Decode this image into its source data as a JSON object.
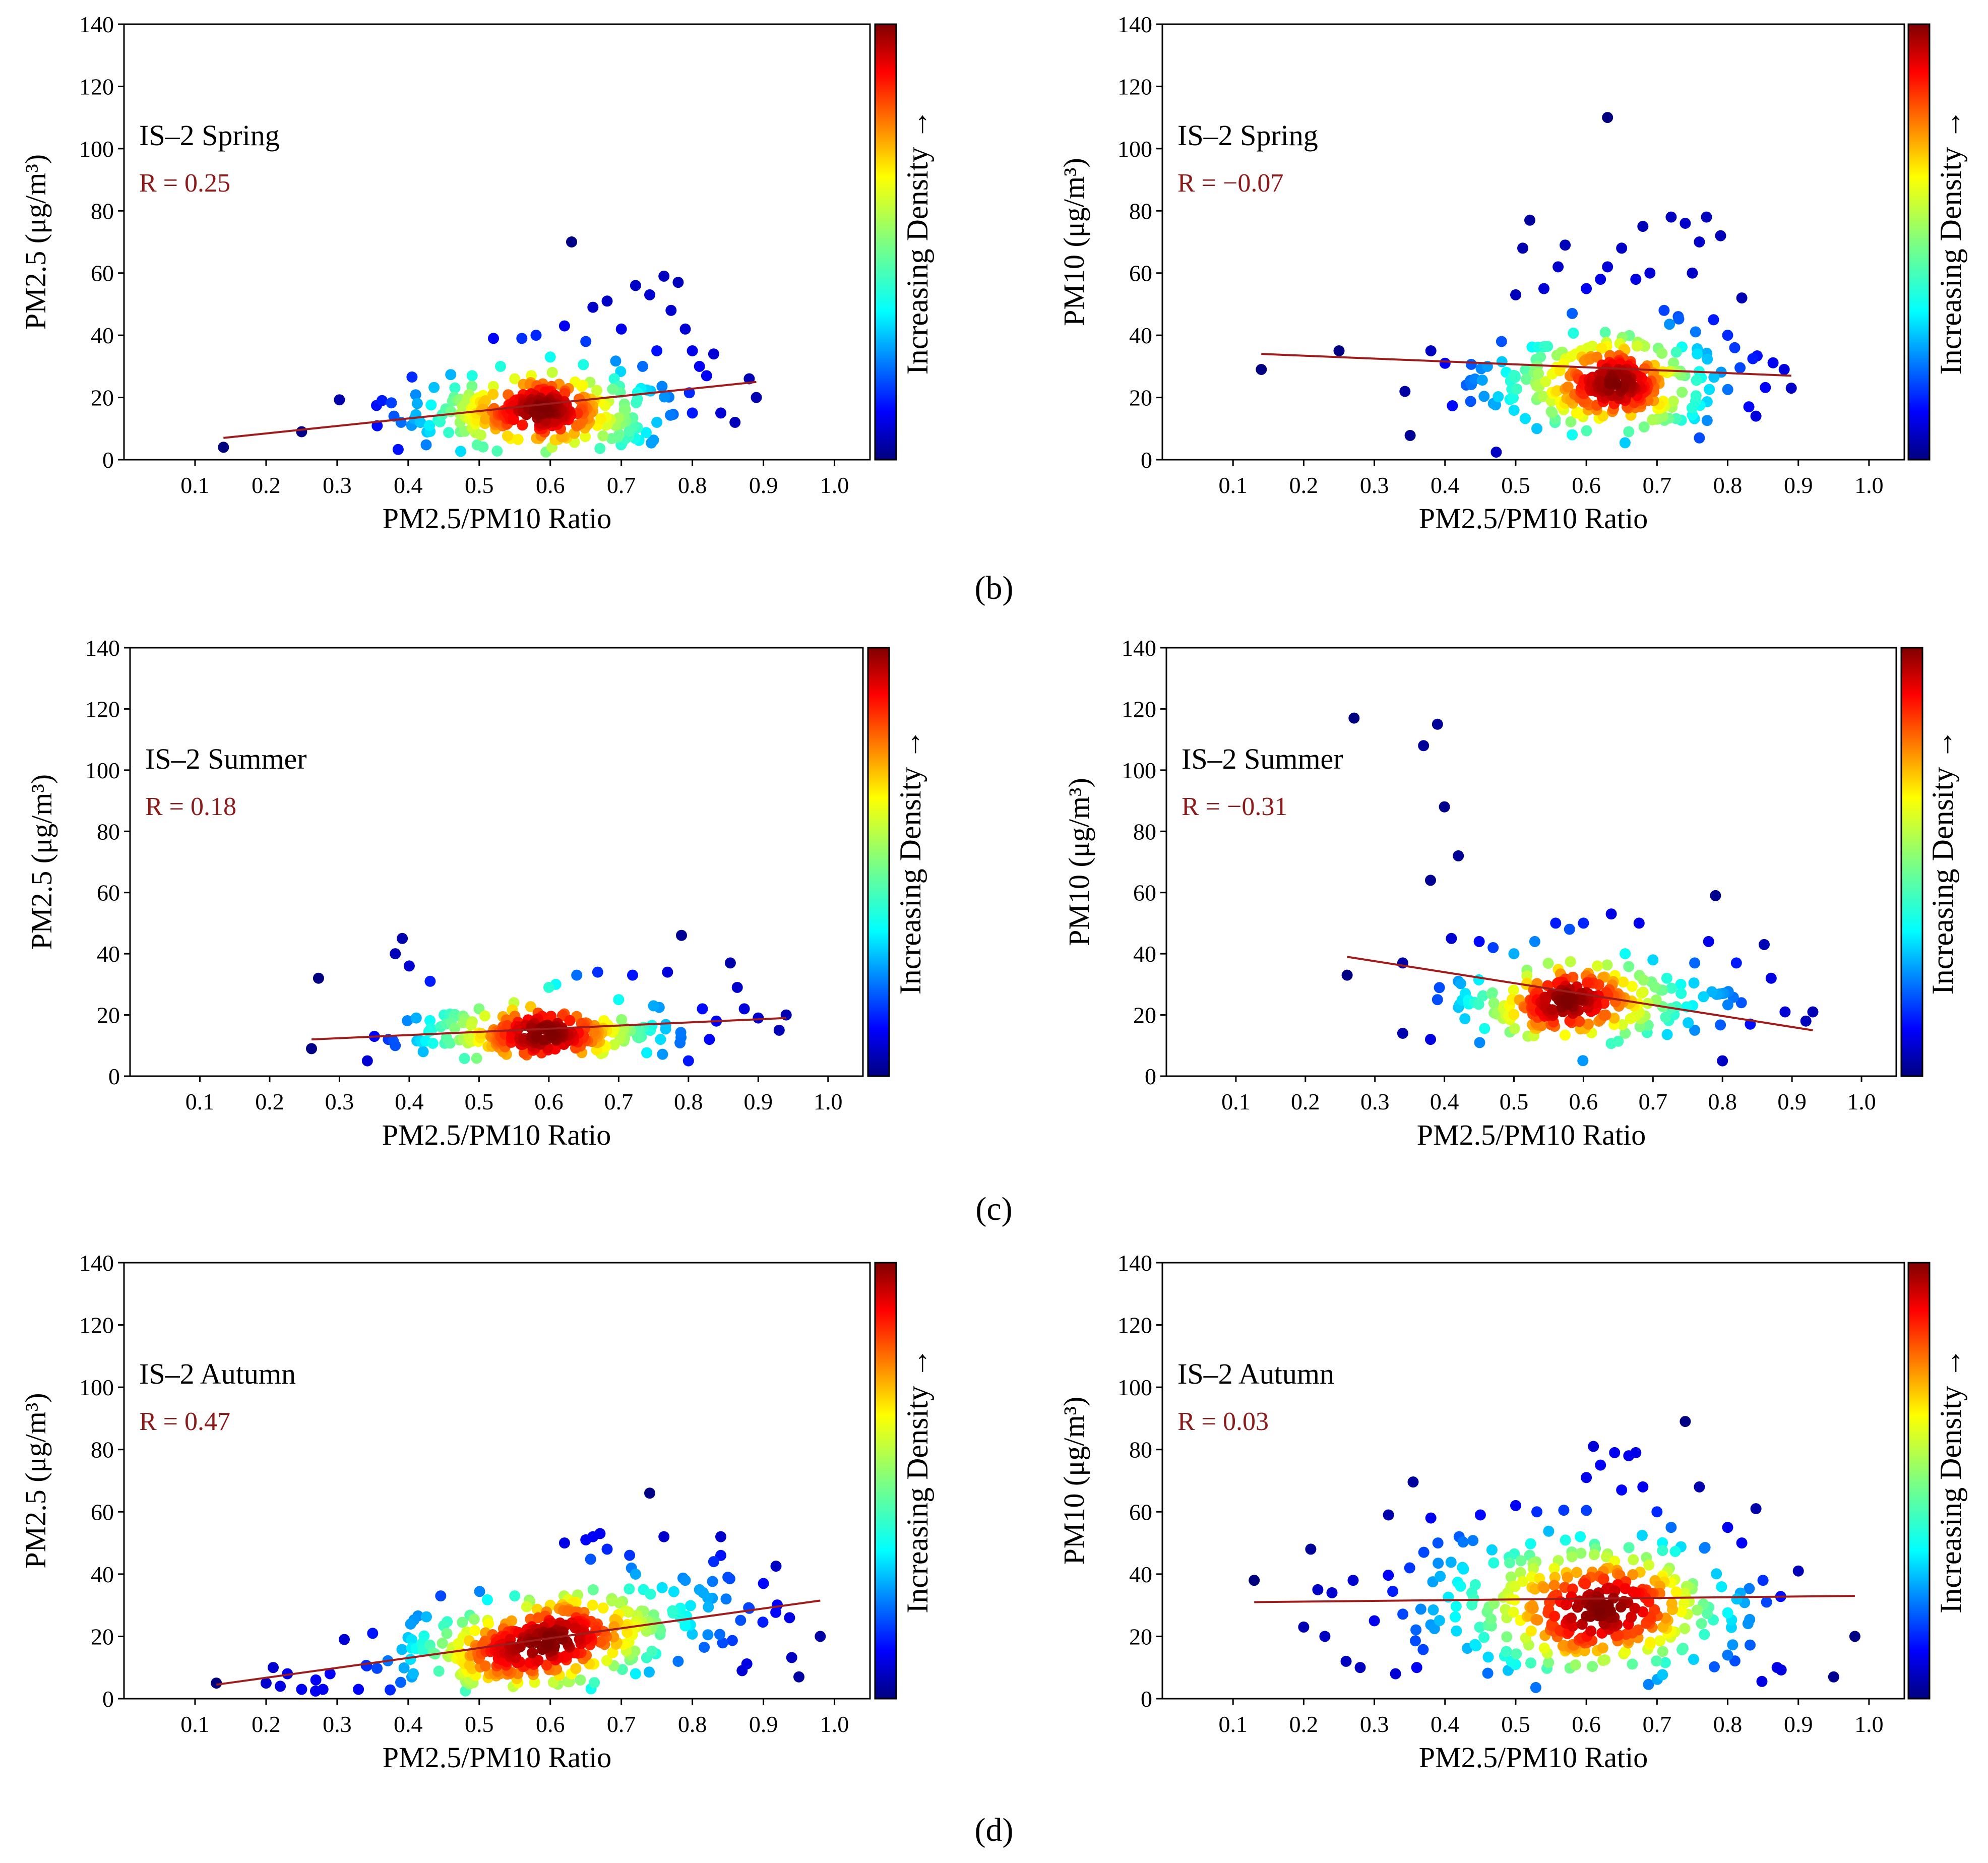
{
  "colors": {
    "regression_line": "#a01c1c",
    "r_text": "#8b1a1a",
    "axis": "#000000",
    "colormap": [
      "#00007f",
      "#0000ff",
      "#007fff",
      "#00ffff",
      "#7fff7f",
      "#ffff00",
      "#ff7f00",
      "#ff0000",
      "#7f0000"
    ]
  },
  "panel_letters": [
    "(b)",
    "(c)",
    "(d)"
  ],
  "chart_data": [
    {
      "id": "b-left",
      "type": "scatter",
      "title": "IS–2 Spring",
      "r_text": "R = 0.25",
      "xlabel": "PM2.5/PM10 Ratio",
      "ylabel": "PM2.5 (μg/m³)",
      "colorbar_label": "Increasing Density →",
      "xlim": [
        0,
        1.05
      ],
      "ylim": [
        0,
        140
      ],
      "xticks": [
        "0.1",
        "0.2",
        "0.3",
        "0.4",
        "0.5",
        "0.6",
        "0.7",
        "0.8",
        "0.9",
        "1.0"
      ],
      "yticks": [
        "0",
        "20",
        "40",
        "60",
        "80",
        "100",
        "120",
        "140"
      ],
      "fit": {
        "x": [
          0.14,
          0.89
        ],
        "y": [
          7,
          25
        ]
      },
      "outliers": [
        [
          0.14,
          4
        ],
        [
          0.25,
          9
        ],
        [
          0.38,
          14
        ],
        [
          0.39,
          12
        ],
        [
          0.43,
          11
        ],
        [
          0.47,
          19
        ],
        [
          0.49,
          27
        ],
        [
          0.52,
          39
        ],
        [
          0.53,
          30
        ],
        [
          0.56,
          39
        ],
        [
          0.58,
          40
        ],
        [
          0.62,
          43
        ],
        [
          0.63,
          70
        ],
        [
          0.65,
          38
        ],
        [
          0.66,
          49
        ],
        [
          0.68,
          51
        ],
        [
          0.7,
          42
        ],
        [
          0.72,
          56
        ],
        [
          0.74,
          53
        ],
        [
          0.75,
          35
        ],
        [
          0.76,
          59
        ],
        [
          0.77,
          48
        ],
        [
          0.78,
          57
        ],
        [
          0.79,
          42
        ],
        [
          0.8,
          35
        ],
        [
          0.81,
          30
        ],
        [
          0.82,
          27
        ],
        [
          0.83,
          34
        ],
        [
          0.84,
          15
        ],
        [
          0.86,
          12
        ],
        [
          0.88,
          26
        ],
        [
          0.89,
          20
        ],
        [
          0.6,
          33
        ],
        [
          0.73,
          30
        ],
        [
          0.69,
          26
        ],
        [
          0.55,
          26
        ],
        [
          0.8,
          15
        ],
        [
          0.75,
          12
        ]
      ],
      "cluster": {
        "cx": 0.59,
        "cy": 15,
        "sx": 0.085,
        "sy": 5.5,
        "n": 300,
        "core": [
          0.555,
          14
        ]
      }
    },
    {
      "id": "b-right",
      "type": "scatter",
      "title": "IS–2 Spring",
      "r_text": "R = −0.07",
      "xlabel": "PM2.5/PM10 Ratio",
      "ylabel": "PM10 (μg/m³)",
      "colorbar_label": "Increasing Density →",
      "xlim": [
        0,
        1.05
      ],
      "ylim": [
        0,
        140
      ],
      "xticks": [
        "0.1",
        "0.2",
        "0.3",
        "0.4",
        "0.5",
        "0.6",
        "0.7",
        "0.8",
        "0.9",
        "1.0"
      ],
      "yticks": [
        "0",
        "20",
        "40",
        "60",
        "80",
        "100",
        "120",
        "140"
      ],
      "fit": {
        "x": [
          0.14,
          0.89
        ],
        "y": [
          34,
          27
        ]
      },
      "outliers": [
        [
          0.14,
          29
        ],
        [
          0.25,
          35
        ],
        [
          0.38,
          35
        ],
        [
          0.4,
          31
        ],
        [
          0.43,
          24
        ],
        [
          0.46,
          30
        ],
        [
          0.48,
          38
        ],
        [
          0.5,
          53
        ],
        [
          0.51,
          68
        ],
        [
          0.52,
          77
        ],
        [
          0.54,
          55
        ],
        [
          0.56,
          62
        ],
        [
          0.57,
          69
        ],
        [
          0.58,
          47
        ],
        [
          0.6,
          55
        ],
        [
          0.62,
          58
        ],
        [
          0.63,
          62
        ],
        [
          0.63,
          110
        ],
        [
          0.65,
          68
        ],
        [
          0.67,
          58
        ],
        [
          0.68,
          75
        ],
        [
          0.69,
          60
        ],
        [
          0.71,
          48
        ],
        [
          0.72,
          78
        ],
        [
          0.73,
          46
        ],
        [
          0.74,
          76
        ],
        [
          0.75,
          60
        ],
        [
          0.76,
          70
        ],
        [
          0.77,
          78
        ],
        [
          0.78,
          45
        ],
        [
          0.79,
          72
        ],
        [
          0.8,
          40
        ],
        [
          0.81,
          36
        ],
        [
          0.82,
          52
        ],
        [
          0.83,
          17
        ],
        [
          0.84,
          14
        ],
        [
          0.88,
          29
        ],
        [
          0.89,
          23
        ],
        [
          0.53,
          10
        ],
        [
          0.58,
          8
        ],
        [
          0.66,
          9
        ],
        [
          0.7,
          13
        ],
        [
          0.76,
          7
        ]
      ],
      "cluster": {
        "cx": 0.625,
        "cy": 25,
        "sx": 0.085,
        "sy": 7.5,
        "n": 300,
        "core": [
          0.57,
          26
        ]
      }
    },
    {
      "id": "c-left",
      "type": "scatter",
      "title": "IS–2 Summer",
      "r_text": "R = 0.18",
      "xlabel": "PM2.5/PM10 Ratio",
      "ylabel": "PM2.5 (μg/m³)",
      "colorbar_label": "Increasing Density →",
      "xlim": [
        0,
        1.05
      ],
      "ylim": [
        0,
        140
      ],
      "xticks": [
        "0.1",
        "0.2",
        "0.3",
        "0.4",
        "0.5",
        "0.6",
        "0.7",
        "0.8",
        "0.9",
        "1.0"
      ],
      "yticks": [
        "0",
        "20",
        "40",
        "60",
        "80",
        "100",
        "120",
        "140"
      ],
      "fit": {
        "x": [
          0.26,
          0.94
        ],
        "y": [
          12,
          19
        ]
      },
      "outliers": [
        [
          0.26,
          9
        ],
        [
          0.27,
          32
        ],
        [
          0.34,
          5
        ],
        [
          0.35,
          13
        ],
        [
          0.38,
          40
        ],
        [
          0.39,
          45
        ],
        [
          0.4,
          36
        ],
        [
          0.41,
          19
        ],
        [
          0.43,
          31
        ],
        [
          0.38,
          10
        ],
        [
          0.37,
          12
        ],
        [
          0.42,
          8
        ],
        [
          0.45,
          20
        ],
        [
          0.5,
          22
        ],
        [
          0.55,
          24
        ],
        [
          0.6,
          29
        ],
        [
          0.61,
          30
        ],
        [
          0.64,
          33
        ],
        [
          0.67,
          34
        ],
        [
          0.7,
          25
        ],
        [
          0.72,
          33
        ],
        [
          0.75,
          23
        ],
        [
          0.77,
          34
        ],
        [
          0.79,
          46
        ],
        [
          0.8,
          5
        ],
        [
          0.82,
          22
        ],
        [
          0.84,
          18
        ],
        [
          0.86,
          37
        ],
        [
          0.87,
          29
        ],
        [
          0.88,
          22
        ],
        [
          0.9,
          19
        ],
        [
          0.93,
          15
        ],
        [
          0.94,
          20
        ],
        [
          0.83,
          12
        ],
        [
          0.76,
          12
        ],
        [
          0.68,
          10
        ]
      ],
      "cluster": {
        "cx": 0.59,
        "cy": 13.5,
        "sx": 0.09,
        "sy": 3.5,
        "n": 230,
        "core": [
          0.555,
          13
        ]
      }
    },
    {
      "id": "c-right",
      "type": "scatter",
      "title": "IS–2 Summer",
      "r_text": "R = −0.31",
      "xlabel": "PM2.5/PM10 Ratio",
      "ylabel": "PM10 (μg/m³)",
      "colorbar_label": "Increasing Density →",
      "xlim": [
        0,
        1.05
      ],
      "ylim": [
        0,
        140
      ],
      "xticks": [
        "0.1",
        "0.2",
        "0.3",
        "0.4",
        "0.5",
        "0.6",
        "0.7",
        "0.8",
        "0.9",
        "1.0"
      ],
      "yticks": [
        "0",
        "20",
        "40",
        "60",
        "80",
        "100",
        "120",
        "140"
      ],
      "fit": {
        "x": [
          0.26,
          0.93
        ],
        "y": [
          39,
          15
        ]
      },
      "outliers": [
        [
          0.26,
          33
        ],
        [
          0.27,
          117
        ],
        [
          0.34,
          37
        ],
        [
          0.37,
          108
        ],
        [
          0.38,
          64
        ],
        [
          0.39,
          115
        ],
        [
          0.4,
          88
        ],
        [
          0.42,
          72
        ],
        [
          0.34,
          14
        ],
        [
          0.38,
          12
        ],
        [
          0.39,
          25
        ],
        [
          0.41,
          45
        ],
        [
          0.42,
          31
        ],
        [
          0.43,
          27
        ],
        [
          0.45,
          44
        ],
        [
          0.47,
          42
        ],
        [
          0.5,
          40
        ],
        [
          0.53,
          44
        ],
        [
          0.56,
          50
        ],
        [
          0.58,
          48
        ],
        [
          0.6,
          50
        ],
        [
          0.62,
          36
        ],
        [
          0.64,
          53
        ],
        [
          0.66,
          40
        ],
        [
          0.68,
          50
        ],
        [
          0.7,
          38
        ],
        [
          0.72,
          32
        ],
        [
          0.74,
          30
        ],
        [
          0.76,
          37
        ],
        [
          0.78,
          44
        ],
        [
          0.79,
          59
        ],
        [
          0.8,
          27
        ],
        [
          0.82,
          37
        ],
        [
          0.84,
          17
        ],
        [
          0.86,
          43
        ],
        [
          0.87,
          32
        ],
        [
          0.89,
          21
        ],
        [
          0.92,
          18
        ],
        [
          0.93,
          21
        ],
        [
          0.8,
          5
        ],
        [
          0.76,
          15
        ],
        [
          0.66,
          14
        ]
      ],
      "cluster": {
        "cx": 0.59,
        "cy": 23.5,
        "sx": 0.085,
        "sy": 5.5,
        "n": 230,
        "core": [
          0.555,
          24
        ]
      }
    },
    {
      "id": "d-left",
      "type": "scatter",
      "title": "IS–2 Autumn",
      "r_text": "R = 0.47",
      "xlabel": "PM2.5/PM10 Ratio",
      "ylabel": "PM2.5 (μg/m³)",
      "colorbar_label": "Increasing Density →",
      "xlim": [
        0,
        1.05
      ],
      "ylim": [
        0,
        140
      ],
      "xticks": [
        "0.1",
        "0.2",
        "0.3",
        "0.4",
        "0.5",
        "0.6",
        "0.7",
        "0.8",
        "0.9",
        "1.0"
      ],
      "yticks": [
        "0",
        "20",
        "40",
        "60",
        "80",
        "100",
        "120",
        "140"
      ],
      "fit": {
        "x": [
          0.13,
          0.98
        ],
        "y": [
          4.5,
          31.5
        ]
      },
      "outliers": [
        [
          0.13,
          5
        ],
        [
          0.2,
          5
        ],
        [
          0.21,
          10
        ],
        [
          0.22,
          4
        ],
        [
          0.23,
          8
        ],
        [
          0.25,
          3
        ],
        [
          0.27,
          6
        ],
        [
          0.28,
          3
        ],
        [
          0.29,
          8
        ],
        [
          0.31,
          19
        ],
        [
          0.33,
          3
        ],
        [
          0.35,
          21
        ],
        [
          0.62,
          50
        ],
        [
          0.65,
          51
        ],
        [
          0.66,
          52
        ],
        [
          0.67,
          53
        ],
        [
          0.68,
          48
        ],
        [
          0.72,
          40
        ],
        [
          0.74,
          66
        ],
        [
          0.76,
          52
        ],
        [
          0.79,
          38
        ],
        [
          0.81,
          35
        ],
        [
          0.83,
          44
        ],
        [
          0.84,
          52
        ],
        [
          0.84,
          46
        ],
        [
          0.85,
          39
        ],
        [
          0.87,
          9
        ],
        [
          0.88,
          29
        ],
        [
          0.9,
          37
        ],
        [
          0.95,
          7
        ],
        [
          0.98,
          20
        ],
        [
          0.78,
          12
        ],
        [
          0.72,
          8
        ],
        [
          0.6,
          30
        ],
        [
          0.55,
          33
        ]
      ],
      "cluster": {
        "cx": 0.6,
        "cy": 19,
        "sx": 0.115,
        "sy": 7.5,
        "n": 380,
        "core": [
          0.545,
          13
        ],
        "slope": 30
      }
    },
    {
      "id": "d-right",
      "type": "scatter",
      "title": "IS–2 Autumn",
      "r_text": "R = 0.03",
      "xlabel": "PM2.5/PM10 Ratio",
      "ylabel": "PM10 (μg/m³)",
      "colorbar_label": "Increasing Density →",
      "xlim": [
        0,
        1.05
      ],
      "ylim": [
        0,
        140
      ],
      "xticks": [
        "0.1",
        "0.2",
        "0.3",
        "0.4",
        "0.5",
        "0.6",
        "0.7",
        "0.8",
        "0.9",
        "1.0"
      ],
      "yticks": [
        "0",
        "20",
        "40",
        "60",
        "80",
        "100",
        "120",
        "140"
      ],
      "fit": {
        "x": [
          0.13,
          0.98
        ],
        "y": [
          31,
          33
        ]
      },
      "outliers": [
        [
          0.13,
          38
        ],
        [
          0.2,
          23
        ],
        [
          0.21,
          48
        ],
        [
          0.22,
          35
        ],
        [
          0.23,
          20
        ],
        [
          0.24,
          34
        ],
        [
          0.26,
          12
        ],
        [
          0.27,
          38
        ],
        [
          0.28,
          10
        ],
        [
          0.3,
          25
        ],
        [
          0.32,
          59
        ],
        [
          0.33,
          8
        ],
        [
          0.35,
          42
        ],
        [
          0.37,
          47
        ],
        [
          0.38,
          58
        ],
        [
          0.39,
          50
        ],
        [
          0.42,
          52
        ],
        [
          0.45,
          59
        ],
        [
          0.5,
          62
        ],
        [
          0.53,
          60
        ],
        [
          0.6,
          71
        ],
        [
          0.61,
          81
        ],
        [
          0.62,
          75
        ],
        [
          0.64,
          79
        ],
        [
          0.65,
          67
        ],
        [
          0.66,
          78
        ],
        [
          0.67,
          79
        ],
        [
          0.68,
          68
        ],
        [
          0.7,
          60
        ],
        [
          0.72,
          55
        ],
        [
          0.74,
          89
        ],
        [
          0.76,
          68
        ],
        [
          0.8,
          55
        ],
        [
          0.82,
          50
        ],
        [
          0.84,
          61
        ],
        [
          0.85,
          38
        ],
        [
          0.87,
          10
        ],
        [
          0.9,
          41
        ],
        [
          0.95,
          7
        ],
        [
          0.98,
          20
        ],
        [
          0.8,
          14
        ],
        [
          0.36,
          10
        ]
      ],
      "cluster": {
        "cx": 0.6,
        "cy": 30,
        "sx": 0.11,
        "sy": 11,
        "n": 360,
        "cores": [
          [
            0.54,
            21
          ],
          [
            0.68,
            32
          ]
        ]
      }
    }
  ]
}
